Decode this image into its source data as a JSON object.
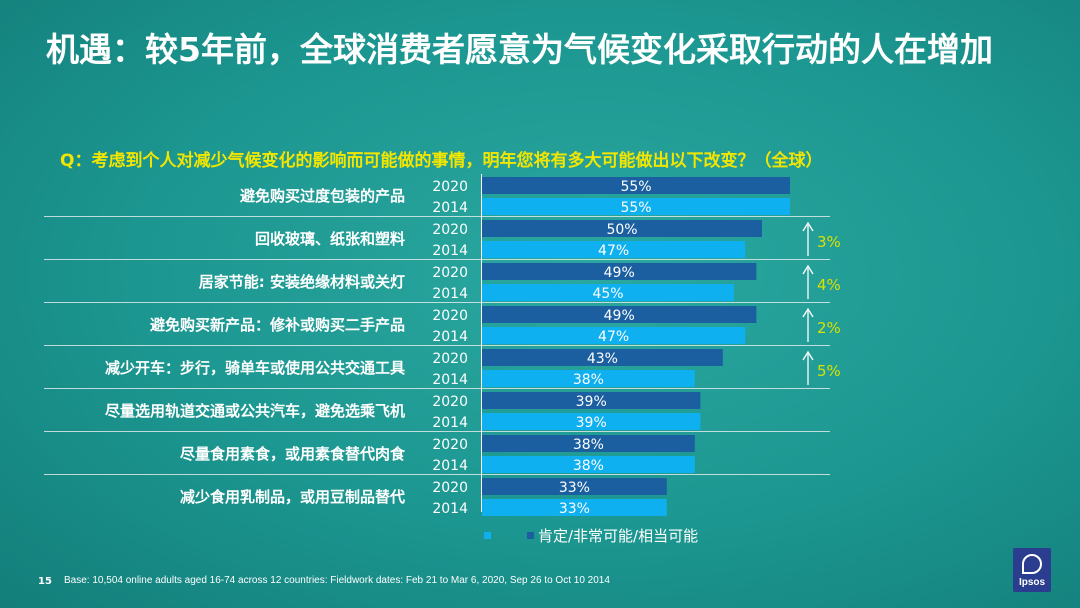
{
  "slide": {
    "title": "机遇：较5年前，全球消费者愿意为气候变化采取行动的人在增加",
    "question": "Q：考虑到个人对减少气候变化的影响而可能做的事情，明年您将有多大可能做出以下改变？（全球）",
    "page_number": "15",
    "footer": "Base: 10,504 online adults aged 16-74 across 12 countries: Fieldwork dates: Feb 21 to Mar 6, 2020, Sep 26 to Oct 10 2014",
    "logo_text": "Ipsos"
  },
  "legend": {
    "label": "肯定/非常可能/相当可能"
  },
  "colors": {
    "bar_2020": "#1b5fa0",
    "bar_2014": "#0fb0f0",
    "change": "#d8e100",
    "title_question": "#f2e600"
  },
  "chart_data": {
    "type": "bar",
    "orientation": "horizontal",
    "categories": [
      "避免购买过度包装的产品",
      "回收玻璃、纸张和塑料",
      "居家节能: 安装绝缘材料或关灯",
      "避免购买新产品：修补或购买二手产品",
      "减少开车：步行，骑单车或使用公共交通工具",
      "尽量选用轨道交通或公共汽车，避免选乘飞机",
      "尽量食用素食，或用素食替代肉食",
      "减少食用乳制品，或用豆制品替代"
    ],
    "series": [
      {
        "name": "2020",
        "values": [
          55,
          50,
          49,
          49,
          43,
          39,
          38,
          33
        ]
      },
      {
        "name": "2014",
        "values": [
          55,
          47,
          45,
          47,
          38,
          39,
          38,
          33
        ]
      }
    ],
    "value_labels": {
      "2020": [
        "55%",
        "50%",
        "49%",
        "49%",
        "43%",
        "39%",
        "38%",
        "33%"
      ],
      "2014": [
        "55%",
        "47%",
        "45%",
        "47%",
        "38%",
        "39%",
        "38%",
        "33%"
      ]
    },
    "changes": [
      "",
      "3%",
      "4%",
      "2%",
      "5%",
      "",
      "",
      ""
    ],
    "xlim": [
      0,
      100
    ]
  }
}
